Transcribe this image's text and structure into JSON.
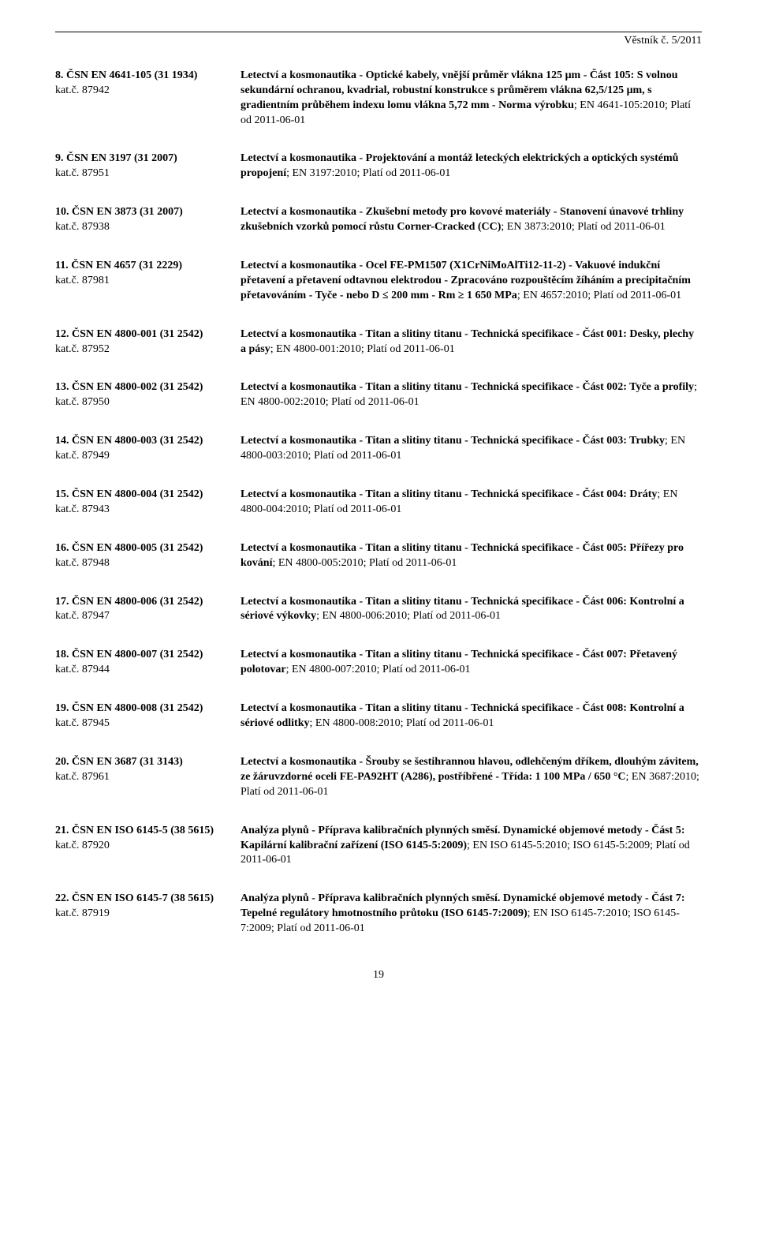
{
  "header": {
    "title": "Věstník č. 5/2011"
  },
  "entries": [
    {
      "std": "8. ČSN EN 4641-105 (31 1934)",
      "kat": "kat.č. 87942",
      "desc_bold": "Letectví a kosmonautika - Optické kabely, vnější průměr vlákna 125 μm - Část 105: S volnou sekundární ochranou, kvadrial, robustní konstrukce s průměrem vlákna 62,5/125 μm, s gradientním průběhem indexu lomu vlákna 5,72 mm - Norma výrobku",
      "desc_plain": "; EN 4641-105:2010; Platí od 2011-06-01"
    },
    {
      "std": "9. ČSN EN 3197 (31 2007)",
      "kat": "kat.č. 87951",
      "desc_bold": "Letectví a kosmonautika - Projektování a montáž leteckých elektrických a optických systémů propojení",
      "desc_plain": "; EN 3197:2010; Platí od 2011-06-01"
    },
    {
      "std": "10. ČSN EN 3873 (31 2007)",
      "kat": "kat.č. 87938",
      "desc_bold": "Letectví a kosmonautika - Zkušební metody pro kovové materiály - Stanovení únavové trhliny zkušebních vzorků pomocí růstu Corner-Cracked (CC)",
      "desc_plain": "; EN 3873:2010; Platí od 2011-06-01"
    },
    {
      "std": "11. ČSN EN 4657 (31 2229)",
      "kat": "kat.č. 87981",
      "desc_bold": "Letectví a kosmonautika - Ocel FE-PM1507 (X1CrNiMoAlTi12-11-2) - Vakuové indukční přetavení a přetavení odtavnou elektrodou - Zpracováno rozpouštěcím žíháním a precipitačním přetavováním - Tyče - nebo D ≤ 200 mm - Rm ≥ 1 650 MPa",
      "desc_plain": "; EN 4657:2010; Platí od 2011-06-01"
    },
    {
      "std": "12. ČSN EN 4800-001 (31 2542)",
      "kat": "kat.č. 87952",
      "desc_bold": "Letectví a kosmonautika - Titan a slitiny titanu - Technická specifikace - Část 001: Desky, plechy a pásy",
      "desc_plain": "; EN 4800-001:2010; Platí od 2011-06-01"
    },
    {
      "std": "13. ČSN EN 4800-002 (31 2542)",
      "kat": "kat.č. 87950",
      "desc_bold": "Letectví a kosmonautika - Titan a slitiny titanu - Technická specifikace - Část 002: Tyče a profily",
      "desc_plain": "; EN 4800-002:2010; Platí od 2011-06-01"
    },
    {
      "std": "14. ČSN EN 4800-003 (31 2542)",
      "kat": "kat.č. 87949",
      "desc_bold": "Letectví a kosmonautika - Titan a slitiny titanu - Technická specifikace - Část 003: Trubky",
      "desc_plain": "; EN 4800-003:2010; Platí od 2011-06-01"
    },
    {
      "std": "15. ČSN EN 4800-004 (31 2542)",
      "kat": "kat.č. 87943",
      "desc_bold": "Letectví a kosmonautika - Titan a slitiny titanu - Technická specifikace - Část 004: Dráty",
      "desc_plain": "; EN 4800-004:2010; Platí od 2011-06-01"
    },
    {
      "std": "16. ČSN EN 4800-005 (31 2542)",
      "kat": "kat.č. 87948",
      "desc_bold": "Letectví a kosmonautika - Titan a slitiny titanu - Technická specifikace - Část 005: Přířezy pro kování",
      "desc_plain": "; EN 4800-005:2010; Platí od 2011-06-01"
    },
    {
      "std": "17. ČSN EN 4800-006 (31 2542)",
      "kat": "kat.č. 87947",
      "desc_bold": "Letectví a kosmonautika - Titan a slitiny titanu - Technická specifikace - Část 006: Kontrolní a sériové výkovky",
      "desc_plain": "; EN 4800-006:2010; Platí od 2011-06-01"
    },
    {
      "std": "18. ČSN EN 4800-007 (31 2542)",
      "kat": "kat.č. 87944",
      "desc_bold": "Letectví a kosmonautika - Titan a slitiny titanu - Technická specifikace - Část 007: Přetavený polotovar",
      "desc_plain": "; EN 4800-007:2010; Platí od 2011-06-01"
    },
    {
      "std": "19. ČSN EN 4800-008 (31 2542)",
      "kat": "kat.č. 87945",
      "desc_bold": "Letectví a kosmonautika - Titan a slitiny titanu - Technická specifikace - Část 008: Kontrolní a sériové odlitky",
      "desc_plain": "; EN 4800-008:2010; Platí od 2011-06-01"
    },
    {
      "std": "20. ČSN EN 3687 (31 3143)",
      "kat": "kat.č. 87961",
      "desc_bold": "Letectví a kosmonautika - Šrouby se šestihrannou hlavou, odlehčeným dříkem, dlouhým závitem, ze žáruvzdorné oceli FE-PA92HT (A286), postříbřené - Třída: 1 100 MPa / 650 °C",
      "desc_plain": "; EN 3687:2010; Platí od 2011-06-01"
    },
    {
      "std": "21. ČSN EN ISO 6145-5 (38 5615)",
      "kat": "kat.č. 87920",
      "desc_bold": "Analýza plynů - Příprava kalibračních plynných směsí. Dynamické objemové metody - Část 5: Kapilární kalibrační zařízení (ISO 6145-5:2009)",
      "desc_plain": "; EN ISO 6145-5:2010; ISO 6145-5:2009; Platí od 2011-06-01"
    },
    {
      "std": "22. ČSN EN ISO 6145-7 (38 5615)",
      "kat": "kat.č. 87919",
      "desc_bold": "Analýza plynů - Příprava kalibračních plynných směsí. Dynamické objemové metody - Část 7: Tepelné regulátory hmotnostního průtoku (ISO 6145-7:2009)",
      "desc_plain": "; EN ISO 6145-7:2010; ISO 6145-7:2009; Platí od 2011-06-01"
    }
  ],
  "page_number": "19"
}
